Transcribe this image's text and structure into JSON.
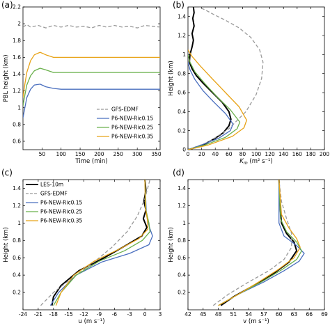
{
  "chart_data": [
    {
      "panel": "(a)",
      "type": "line",
      "xlabel": "Time (min)",
      "ylabel": "PBL height (km)",
      "xlim": [
        0,
        360
      ],
      "ylim": [
        0.5,
        2.2
      ],
      "xticks": [
        "50",
        "100",
        "150",
        "200",
        "250",
        "300",
        "350"
      ],
      "yticks": [
        "0.6",
        "0.8",
        "1",
        "1.2",
        "1.4",
        "1.6",
        "1.8",
        "2",
        "2.2"
      ],
      "legend_position": "bottom-right",
      "series": [
        {
          "name": "GFS-EDMF",
          "color": "#999999",
          "dash": true,
          "x": [
            0,
            10,
            20,
            40,
            60,
            80,
            100,
            120,
            140,
            160,
            180,
            200,
            220,
            240,
            260,
            280,
            300,
            320,
            340,
            360
          ],
          "y": [
            1.96,
            1.99,
            1.96,
            1.98,
            1.95,
            1.98,
            1.96,
            1.98,
            1.96,
            1.97,
            1.95,
            1.98,
            1.96,
            1.98,
            1.96,
            1.97,
            1.95,
            1.98,
            1.97,
            1.96
          ]
        },
        {
          "name": "P6-NEW-Ric0.15",
          "color": "#4a6fbf",
          "x": [
            0,
            5,
            10,
            20,
            30,
            45,
            60,
            80,
            100,
            150,
            200,
            250,
            300,
            360
          ],
          "y": [
            0.88,
            1.0,
            1.12,
            1.22,
            1.27,
            1.28,
            1.25,
            1.23,
            1.22,
            1.22,
            1.22,
            1.22,
            1.22,
            1.22
          ]
        },
        {
          "name": "P6-NEW-Ric0.25",
          "color": "#6ab04c",
          "x": [
            0,
            5,
            10,
            20,
            30,
            45,
            60,
            80,
            100,
            150,
            200,
            250,
            300,
            360
          ],
          "y": [
            1.02,
            1.15,
            1.27,
            1.38,
            1.44,
            1.47,
            1.45,
            1.42,
            1.42,
            1.42,
            1.42,
            1.42,
            1.42,
            1.42
          ]
        },
        {
          "name": "P6-NEW-Ric0.35",
          "color": "#e8a317",
          "x": [
            0,
            5,
            10,
            20,
            30,
            45,
            60,
            80,
            100,
            150,
            200,
            250,
            300,
            360
          ],
          "y": [
            1.12,
            1.28,
            1.42,
            1.56,
            1.63,
            1.66,
            1.63,
            1.6,
            1.6,
            1.6,
            1.6,
            1.6,
            1.6,
            1.6
          ]
        }
      ]
    },
    {
      "panel": "(b)",
      "type": "line",
      "xlabel": "K",
      "xlabel_sub": "m",
      "xlabel_units": " (m² s⁻¹)",
      "ylabel": "Height (km)",
      "xlim": [
        0,
        200
      ],
      "ylim": [
        0,
        1.5
      ],
      "xticks": [
        "0",
        "20",
        "40",
        "60",
        "80",
        "100",
        "120",
        "140",
        "160",
        "180",
        "200"
      ],
      "yticks": [
        "0",
        "0.2",
        "0.4",
        "0.6",
        "0.8",
        "1",
        "1.2",
        "1.4"
      ],
      "series": [
        {
          "name": "LES-10m",
          "color": "#000000",
          "width": 2,
          "x": [
            0,
            10,
            25,
            40,
            52,
            60,
            63,
            60,
            50,
            36,
            22,
            12,
            6,
            2,
            3,
            6,
            8,
            6,
            9,
            7,
            9,
            8
          ],
          "y": [
            0,
            0.02,
            0.06,
            0.12,
            0.18,
            0.25,
            0.32,
            0.4,
            0.5,
            0.6,
            0.7,
            0.78,
            0.85,
            0.92,
            1.0,
            1.08,
            1.15,
            1.22,
            1.3,
            1.38,
            1.44,
            1.5
          ]
        },
        {
          "name": "GFS-EDMF",
          "color": "#999999",
          "dash": true,
          "x": [
            0,
            30,
            60,
            85,
            100,
            108,
            110,
            105,
            92,
            75,
            55,
            38,
            25,
            15
          ],
          "y": [
            0,
            0.08,
            0.22,
            0.4,
            0.58,
            0.75,
            0.92,
            1.05,
            1.18,
            1.28,
            1.36,
            1.42,
            1.47,
            1.5
          ]
        },
        {
          "name": "P6-NEW-Ric0.15",
          "color": "#4a6fbf",
          "x": [
            0,
            20,
            45,
            62,
            66,
            55,
            38,
            22,
            10,
            3,
            0
          ],
          "y": [
            0,
            0.05,
            0.12,
            0.2,
            0.27,
            0.38,
            0.5,
            0.62,
            0.74,
            0.84,
            0.92
          ]
        },
        {
          "name": "P6-NEW-Ric0.25",
          "color": "#6ab04c",
          "x": [
            0,
            25,
            55,
            72,
            76,
            62,
            42,
            24,
            10,
            3,
            0
          ],
          "y": [
            0,
            0.05,
            0.13,
            0.22,
            0.29,
            0.42,
            0.56,
            0.7,
            0.82,
            0.92,
            1.0
          ]
        },
        {
          "name": "P6-NEW-Ric0.35",
          "color": "#e8a317",
          "x": [
            0,
            30,
            65,
            82,
            86,
            75,
            55,
            35,
            18,
            6,
            0
          ],
          "y": [
            0,
            0.05,
            0.14,
            0.23,
            0.31,
            0.45,
            0.6,
            0.75,
            0.88,
            0.98,
            1.05
          ]
        }
      ]
    },
    {
      "panel": "(c)",
      "type": "line",
      "xlabel": "u (m s⁻¹)",
      "ylabel": "Height (km)",
      "xlim": [
        -24,
        3
      ],
      "ylim": [
        0,
        1.5
      ],
      "xticks": [
        "-24",
        "-21",
        "-18",
        "-15",
        "-12",
        "-9",
        "-6",
        "-3",
        "0",
        "3"
      ],
      "yticks": [
        "0.2",
        "0.4",
        "0.6",
        "0.8",
        "1",
        "1.2",
        "1.4"
      ],
      "legend_position": "top-left",
      "series": [
        {
          "name": "LES-10m",
          "color": "#000000",
          "width": 2,
          "x": [
            -18.3,
            -18.0,
            -16.5,
            -13.0,
            -8.0,
            -3.5,
            -0.6,
            0.4,
            -0.3,
            0.2,
            -0.2,
            0.2,
            0.0
          ],
          "y": [
            0.05,
            0.15,
            0.28,
            0.45,
            0.6,
            0.75,
            0.85,
            0.95,
            1.05,
            1.15,
            1.25,
            1.38,
            1.5
          ]
        },
        {
          "name": "GFS-EDMF",
          "color": "#999999",
          "dash": true,
          "x": [
            -20.5,
            -18.0,
            -14.0,
            -10.0,
            -6.5,
            -3.5,
            -1.5,
            0.0,
            1.0
          ],
          "y": [
            0.05,
            0.2,
            0.38,
            0.55,
            0.72,
            0.9,
            1.08,
            1.28,
            1.5
          ]
        },
        {
          "name": "P6-NEW-Ric0.15",
          "color": "#4a6fbf",
          "x": [
            -18.6,
            -17.0,
            -13.5,
            -8.5,
            -3.0,
            0.8,
            1.5,
            0.9,
            0.3,
            0.0
          ],
          "y": [
            0.05,
            0.2,
            0.4,
            0.55,
            0.65,
            0.75,
            0.85,
            0.95,
            1.1,
            1.5
          ]
        },
        {
          "name": "P6-NEW-Ric0.25",
          "color": "#6ab04c",
          "x": [
            -18.0,
            -16.5,
            -13.5,
            -9.0,
            -4.0,
            -0.5,
            1.0,
            0.8,
            0.2,
            0.0
          ],
          "y": [
            0.05,
            0.2,
            0.4,
            0.56,
            0.68,
            0.8,
            0.9,
            1.0,
            1.15,
            1.5
          ]
        },
        {
          "name": "P6-NEW-Ric0.35",
          "color": "#e8a317",
          "x": [
            -17.5,
            -16.5,
            -14.0,
            -10.0,
            -5.0,
            -1.2,
            0.6,
            0.5,
            0.1,
            0.0
          ],
          "y": [
            0.05,
            0.2,
            0.4,
            0.56,
            0.7,
            0.82,
            0.93,
            1.03,
            1.18,
            1.5
          ]
        }
      ]
    },
    {
      "panel": "(d)",
      "type": "line",
      "xlabel": "v (m s⁻¹)",
      "ylabel": "Height (km)",
      "xlim": [
        42,
        69
      ],
      "ylim": [
        0,
        1.5
      ],
      "xticks": [
        "42",
        "45",
        "48",
        "51",
        "54",
        "57",
        "60",
        "63",
        "66",
        "69"
      ],
      "yticks": [
        "0.2",
        "0.4",
        "0.6",
        "0.8",
        "1",
        "1.2",
        "1.4"
      ],
      "series": [
        {
          "name": "LES-10m",
          "color": "#000000",
          "width": 2,
          "x": [
            48.5,
            51.0,
            55.0,
            59.0,
            62.0,
            63.5,
            63.0,
            61.5,
            60.5,
            60.2,
            60.0
          ],
          "y": [
            0.05,
            0.15,
            0.28,
            0.42,
            0.55,
            0.68,
            0.78,
            0.88,
            1.0,
            1.2,
            1.5
          ]
        },
        {
          "name": "GFS-EDMF",
          "color": "#999999",
          "dash": true,
          "x": [
            47.0,
            50.0,
            54.0,
            58.0,
            61.0,
            62.5,
            62.5,
            61.5,
            60.5,
            60.0
          ],
          "y": [
            0.05,
            0.18,
            0.32,
            0.45,
            0.58,
            0.72,
            0.88,
            1.05,
            1.25,
            1.5
          ]
        },
        {
          "name": "P6-NEW-Ric0.15",
          "color": "#4a6fbf",
          "x": [
            48.0,
            52.0,
            57.0,
            61.0,
            64.0,
            65.0,
            63.5,
            61.0,
            60.0,
            60.0
          ],
          "y": [
            0.05,
            0.18,
            0.32,
            0.45,
            0.56,
            0.65,
            0.74,
            0.85,
            1.0,
            1.5
          ]
        },
        {
          "name": "P6-NEW-Ric0.25",
          "color": "#6ab04c",
          "x": [
            48.0,
            52.0,
            56.5,
            60.5,
            63.5,
            64.5,
            63.5,
            61.5,
            60.3,
            60.0
          ],
          "y": [
            0.05,
            0.18,
            0.32,
            0.46,
            0.58,
            0.68,
            0.78,
            0.9,
            1.05,
            1.5
          ]
        },
        {
          "name": "P6-NEW-Ric0.35",
          "color": "#e8a317",
          "x": [
            48.0,
            52.0,
            56.0,
            60.0,
            63.0,
            64.2,
            63.5,
            62.0,
            60.5,
            60.0
          ],
          "y": [
            0.05,
            0.18,
            0.32,
            0.47,
            0.6,
            0.72,
            0.82,
            0.94,
            1.1,
            1.5
          ]
        }
      ]
    }
  ]
}
